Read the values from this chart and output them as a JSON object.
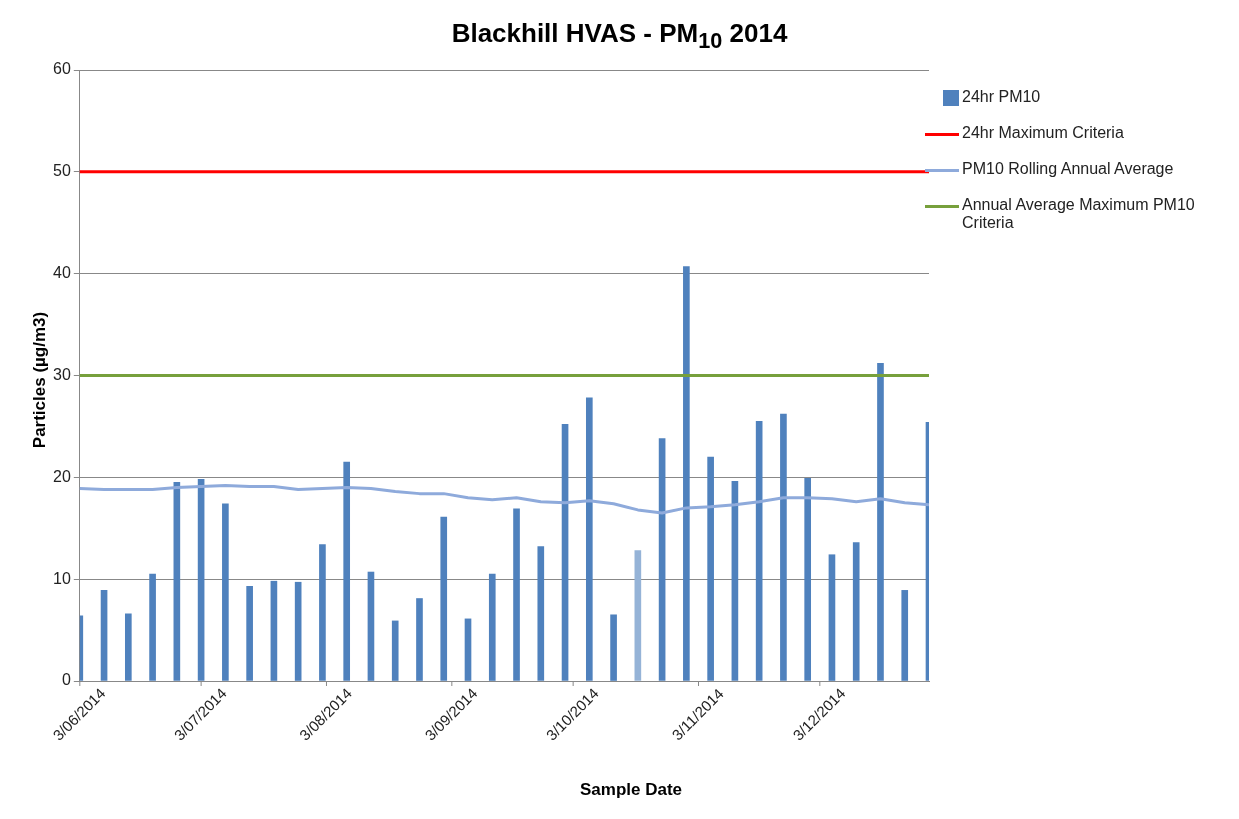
{
  "chart_data": {
    "type": "bar",
    "title": "Blackhill HVAS - PM$_{10}$ 2014",
    "xlabel": "Sample Date",
    "ylabel": "Particles (µg/m3)",
    "x": [
      "2014-06-03",
      "2014-06-09",
      "2014-06-15",
      "2014-06-21",
      "2014-06-27",
      "2014-07-03",
      "2014-07-09",
      "2014-07-15",
      "2014-07-21",
      "2014-07-27",
      "2014-08-02",
      "2014-08-08",
      "2014-08-14",
      "2014-08-20",
      "2014-08-26",
      "2014-09-01",
      "2014-09-07",
      "2014-09-13",
      "2014-09-19",
      "2014-09-25",
      "2014-10-01",
      "2014-10-07",
      "2014-10-13",
      "2014-10-19",
      "2014-10-25",
      "2014-10-31",
      "2014-11-06",
      "2014-11-12",
      "2014-11-18",
      "2014-11-24",
      "2014-11-30",
      "2014-12-06",
      "2014-12-12",
      "2014-12-18",
      "2014-12-24",
      "2014-12-30"
    ],
    "series": [
      {
        "name": "24hr PM10",
        "color": "#4f81bd",
        "colors": [
          "#4f81bd",
          "#4f81bd",
          "#4f81bd",
          "#4f81bd",
          "#4f81bd",
          "#4f81bd",
          "#4f81bd",
          "#4f81bd",
          "#4f81bd",
          "#4f81bd",
          "#4f81bd",
          "#4f81bd",
          "#4f81bd",
          "#4f81bd",
          "#4f81bd",
          "#4f81bd",
          "#4f81bd",
          "#4f81bd",
          "#4f81bd",
          "#4f81bd",
          "#4f81bd",
          "#4f81bd",
          "#4f81bd",
          "#95b3d7",
          "#4f81bd",
          "#4f81bd",
          "#4f81bd",
          "#4f81bd",
          "#4f81bd",
          "#4f81bd",
          "#4f81bd",
          "#4f81bd",
          "#4f81bd",
          "#4f81bd",
          "#4f81bd",
          "#4f81bd"
        ],
        "values": [
          6.4,
          8.9,
          6.6,
          10.5,
          19.5,
          19.8,
          17.4,
          9.3,
          9.8,
          9.7,
          13.4,
          21.5,
          10.7,
          5.9,
          8.1,
          16.1,
          6.1,
          10.5,
          16.9,
          13.2,
          25.2,
          27.8,
          6.5,
          12.8,
          23.8,
          40.7,
          22.0,
          19.6,
          25.5,
          26.2,
          19.9,
          12.4,
          13.6,
          31.2,
          8.9,
          25.4
        ]
      },
      {
        "name": "24hr Maximum Criteria",
        "type": "line",
        "color": "#ff0000",
        "values": [
          50,
          50,
          50,
          50,
          50,
          50,
          50,
          50,
          50,
          50,
          50,
          50,
          50,
          50,
          50,
          50,
          50,
          50,
          50,
          50,
          50,
          50,
          50,
          50,
          50,
          50,
          50,
          50,
          50,
          50,
          50,
          50,
          50,
          50,
          50,
          50
        ]
      },
      {
        "name": "PM10 Rolling Annual Average",
        "type": "line",
        "color": "#8eaadb",
        "values": [
          18.9,
          18.8,
          18.8,
          18.8,
          19.0,
          19.1,
          19.2,
          19.1,
          19.1,
          18.8,
          18.9,
          19.0,
          18.9,
          18.6,
          18.4,
          18.4,
          18.0,
          17.8,
          18.0,
          17.6,
          17.5,
          17.7,
          17.4,
          16.8,
          16.5,
          17.0,
          17.1,
          17.3,
          17.6,
          18.0,
          18.0,
          17.9,
          17.6,
          17.9,
          17.5,
          17.3
        ]
      },
      {
        "name": "Annual Average Maximum PM10 Criteria",
        "type": "line",
        "color": "#77a03c",
        "values": [
          30,
          30,
          30,
          30,
          30,
          30,
          30,
          30,
          30,
          30,
          30,
          30,
          30,
          30,
          30,
          30,
          30,
          30,
          30,
          30,
          30,
          30,
          30,
          30,
          30,
          30,
          30,
          30,
          30,
          30,
          30,
          30,
          30,
          30,
          30,
          30
        ]
      }
    ],
    "xlim": [
      "2014-06-03",
      "2014-12-30"
    ],
    "xticks": [
      {
        "value": "2014-06-03",
        "label": "3/06/2014"
      },
      {
        "value": "2014-07-03",
        "label": "3/07/2014"
      },
      {
        "value": "2014-08-03",
        "label": "3/08/2014"
      },
      {
        "value": "2014-09-03",
        "label": "3/09/2014"
      },
      {
        "value": "2014-10-03",
        "label": "3/10/2014"
      },
      {
        "value": "2014-11-03",
        "label": "3/11/2014"
      },
      {
        "value": "2014-12-03",
        "label": "3/12/2014"
      }
    ],
    "ylim": [
      0,
      60
    ],
    "yticks": [
      0,
      10,
      20,
      30,
      40,
      50,
      60
    ],
    "grid": "y",
    "legend": "right",
    "marker": "none",
    "line_style": "solid"
  }
}
